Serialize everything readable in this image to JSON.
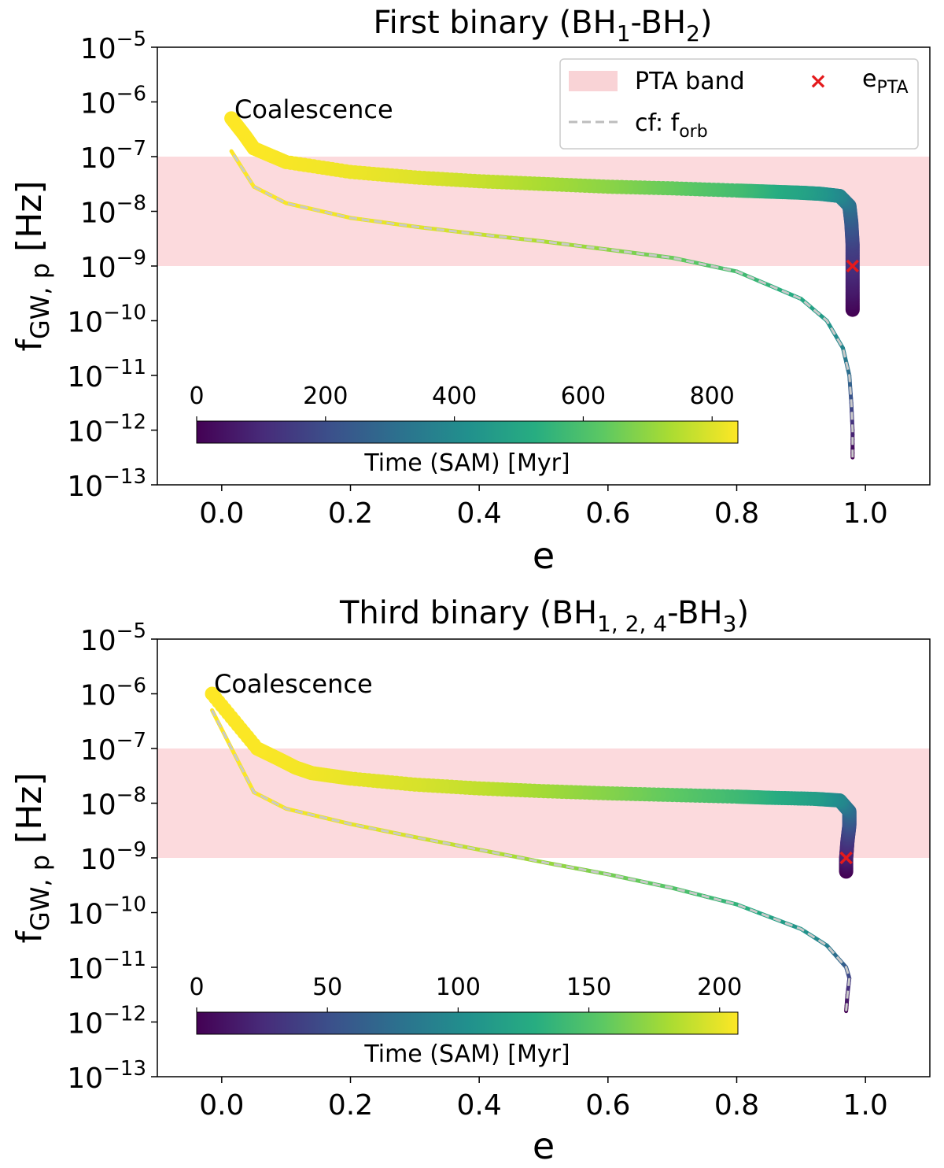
{
  "chart_data": [
    {
      "type": "scatter",
      "title_main": "First binary (BH",
      "title_sub1": "1",
      "title_mid": "-BH",
      "title_sub2": "2",
      "title_end": ")",
      "xlabel": "e",
      "ylabel_main": "f",
      "ylabel_sub": "GW, p",
      "ylabel_unit": " [Hz]",
      "xlim": [
        -0.1,
        1.1
      ],
      "ylim_log10": [
        -13,
        -5
      ],
      "x_ticks": [
        0.0,
        0.2,
        0.4,
        0.6,
        0.8,
        1.0
      ],
      "x_tick_labels": [
        "0.0",
        "0.2",
        "0.4",
        "0.6",
        "0.8",
        "1.0"
      ],
      "y_ticks_exp": [
        -5,
        -6,
        -7,
        -8,
        -9,
        -10,
        -11,
        -12,
        -13
      ],
      "y_tick_base": "10",
      "y_tick_exp_labels": [
        "−5",
        "−6",
        "−7",
        "−8",
        "−9",
        "−10",
        "−11",
        "−12",
        "−13"
      ],
      "pta_band_log10": [
        -9,
        -7
      ],
      "annotation": "Coalescence",
      "annotation_point": [
        0.015,
        -6.3
      ],
      "e_pta": {
        "e": 0.98,
        "log10_f": -9.0
      },
      "legend": {
        "band": "PTA band",
        "line": "cf: f",
        "line_sub": "orb",
        "marker": "e",
        "marker_sub": "PTA"
      },
      "colorbar": {
        "label": "Time (SAM) [Myr]",
        "ticks": [
          0,
          200,
          400,
          600,
          800
        ],
        "max": 840
      },
      "series_fgw": {
        "name": "f_GW,p",
        "points": [
          [
            0.98,
            -9.8,
            0
          ],
          [
            0.98,
            -9.4,
            60
          ],
          [
            0.98,
            -9.0,
            110
          ],
          [
            0.98,
            -8.6,
            160
          ],
          [
            0.978,
            -8.2,
            230
          ],
          [
            0.975,
            -7.9,
            300
          ],
          [
            0.96,
            -7.72,
            380
          ],
          [
            0.93,
            -7.68,
            440
          ],
          [
            0.9,
            -7.66,
            480
          ],
          [
            0.85,
            -7.64,
            530
          ],
          [
            0.8,
            -7.62,
            580
          ],
          [
            0.7,
            -7.58,
            640
          ],
          [
            0.6,
            -7.55,
            690
          ],
          [
            0.5,
            -7.5,
            730
          ],
          [
            0.4,
            -7.45,
            770
          ],
          [
            0.3,
            -7.38,
            800
          ],
          [
            0.2,
            -7.28,
            820
          ],
          [
            0.1,
            -7.1,
            832
          ],
          [
            0.05,
            -6.85,
            838
          ],
          [
            0.035,
            -6.6,
            839
          ],
          [
            0.015,
            -6.3,
            840
          ]
        ]
      },
      "series_forb": {
        "name": "cf: f_orb",
        "points": [
          [
            0.98,
            -12.5,
            0
          ],
          [
            0.98,
            -12.0,
            100
          ],
          [
            0.978,
            -11.5,
            200
          ],
          [
            0.975,
            -11.0,
            300
          ],
          [
            0.965,
            -10.5,
            380
          ],
          [
            0.94,
            -10.0,
            450
          ],
          [
            0.9,
            -9.6,
            510
          ],
          [
            0.8,
            -9.1,
            590
          ],
          [
            0.7,
            -8.85,
            650
          ],
          [
            0.6,
            -8.7,
            700
          ],
          [
            0.5,
            -8.55,
            740
          ],
          [
            0.4,
            -8.42,
            775
          ],
          [
            0.3,
            -8.28,
            805
          ],
          [
            0.2,
            -8.12,
            822
          ],
          [
            0.1,
            -7.85,
            833
          ],
          [
            0.05,
            -7.55,
            838
          ],
          [
            0.015,
            -6.9,
            840
          ]
        ]
      }
    },
    {
      "type": "scatter",
      "title_main": "Third binary (BH",
      "title_sub1": "1, 2, 4",
      "title_mid": "-BH",
      "title_sub2": "3",
      "title_end": ")",
      "xlabel": "e",
      "ylabel_main": "f",
      "ylabel_sub": "GW, p",
      "ylabel_unit": " [Hz]",
      "xlim": [
        -0.1,
        1.1
      ],
      "ylim_log10": [
        -13,
        -5
      ],
      "x_ticks": [
        0.0,
        0.2,
        0.4,
        0.6,
        0.8,
        1.0
      ],
      "x_tick_labels": [
        "0.0",
        "0.2",
        "0.4",
        "0.6",
        "0.8",
        "1.0"
      ],
      "y_ticks_exp": [
        -5,
        -6,
        -7,
        -8,
        -9,
        -10,
        -11,
        -12,
        -13
      ],
      "y_tick_base": "10",
      "y_tick_exp_labels": [
        "−5",
        "−6",
        "−7",
        "−8",
        "−9",
        "−10",
        "−11",
        "−12",
        "−13"
      ],
      "pta_band_log10": [
        -9,
        -7
      ],
      "annotation": "Coalescence",
      "annotation_point": [
        -0.015,
        -6.0
      ],
      "e_pta": {
        "e": 0.97,
        "log10_f": -9.0
      },
      "colorbar": {
        "label": "Time (SAM) [Myr]",
        "ticks": [
          0,
          50,
          100,
          150,
          200
        ],
        "max": 207
      },
      "series_fgw": {
        "name": "f_GW,p",
        "points": [
          [
            0.97,
            -9.25,
            0
          ],
          [
            0.97,
            -9.0,
            15
          ],
          [
            0.972,
            -8.7,
            30
          ],
          [
            0.975,
            -8.4,
            50
          ],
          [
            0.975,
            -8.15,
            70
          ],
          [
            0.96,
            -7.95,
            95
          ],
          [
            0.92,
            -7.92,
            115
          ],
          [
            0.85,
            -7.9,
            130
          ],
          [
            0.8,
            -7.88,
            140
          ],
          [
            0.7,
            -7.85,
            155
          ],
          [
            0.6,
            -7.82,
            168
          ],
          [
            0.5,
            -7.78,
            178
          ],
          [
            0.4,
            -7.73,
            188
          ],
          [
            0.3,
            -7.66,
            195
          ],
          [
            0.2,
            -7.55,
            200
          ],
          [
            0.14,
            -7.45,
            203
          ],
          [
            0.115,
            -7.35,
            204
          ],
          [
            0.09,
            -7.2,
            205
          ],
          [
            0.055,
            -7.0,
            206
          ],
          [
            -0.015,
            -6.0,
            207
          ]
        ]
      },
      "series_forb": {
        "name": "cf: f_orb",
        "points": [
          [
            0.97,
            -11.8,
            0
          ],
          [
            0.972,
            -11.5,
            20
          ],
          [
            0.975,
            -11.2,
            40
          ],
          [
            0.97,
            -11.0,
            60
          ],
          [
            0.94,
            -10.6,
            90
          ],
          [
            0.9,
            -10.3,
            110
          ],
          [
            0.8,
            -9.85,
            135
          ],
          [
            0.7,
            -9.55,
            152
          ],
          [
            0.6,
            -9.3,
            165
          ],
          [
            0.5,
            -9.08,
            176
          ],
          [
            0.4,
            -8.85,
            186
          ],
          [
            0.3,
            -8.62,
            194
          ],
          [
            0.2,
            -8.38,
            200
          ],
          [
            0.1,
            -8.1,
            204
          ],
          [
            0.05,
            -7.8,
            206
          ],
          [
            -0.015,
            -6.3,
            207
          ]
        ]
      }
    }
  ]
}
